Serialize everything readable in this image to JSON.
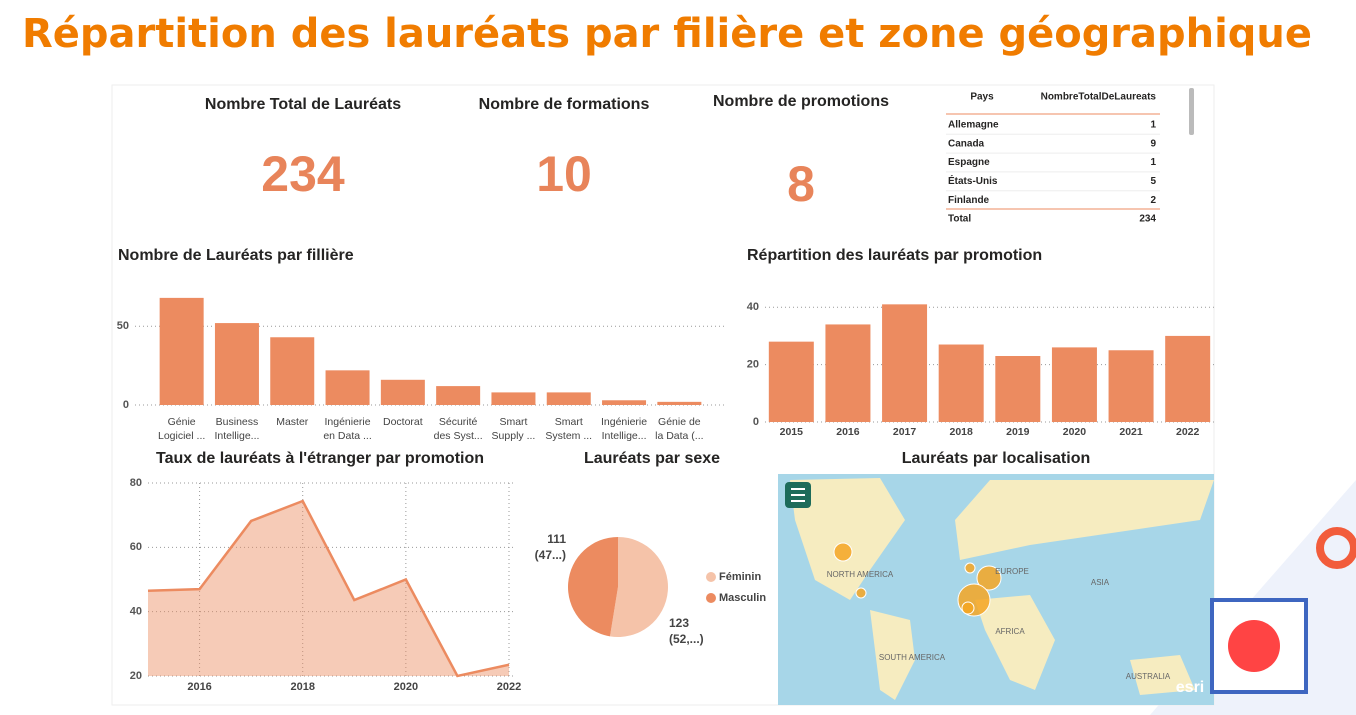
{
  "title": "Répartition des lauréats par filière et zone géographique",
  "kpis": [
    {
      "label": "Nombre Total de Lauréats",
      "value": 234
    },
    {
      "label": "Nombre de formations",
      "value": 10
    },
    {
      "label": "Nombre de promotions",
      "value": 8
    }
  ],
  "table": {
    "headers": [
      "Pays",
      "NombreTotalDeLaureats"
    ],
    "rows": [
      [
        "Allemagne",
        1
      ],
      [
        "Canada",
        9
      ],
      [
        "Espagne",
        1
      ],
      [
        "États-Unis",
        5
      ],
      [
        "Finlande",
        2
      ]
    ],
    "total": [
      "Total",
      234
    ]
  },
  "chart_data": [
    {
      "type": "bar",
      "title": "Nombre de Lauréats par fillière",
      "categories": [
        [
          "Génie",
          "Logiciel ..."
        ],
        [
          "Business",
          "Intellige..."
        ],
        [
          "Master"
        ],
        [
          "Ingénierie",
          "en Data ..."
        ],
        [
          "Doctorat"
        ],
        [
          "Sécurité",
          "des Syst..."
        ],
        [
          "Smart",
          "Supply ..."
        ],
        [
          "Smart",
          "System ..."
        ],
        [
          "Ingénierie",
          "Intellige..."
        ],
        [
          "Génie de",
          "la Data (..."
        ]
      ],
      "values": [
        68,
        52,
        43,
        22,
        16,
        12,
        8,
        8,
        3,
        2
      ],
      "color": "#ec8b60",
      "ylim": [
        0,
        73
      ],
      "yticks": [
        0,
        50
      ],
      "grid": true
    },
    {
      "type": "bar",
      "title": "Répartition des lauréats par promotion",
      "categories": [
        [
          "2015"
        ],
        [
          "2016"
        ],
        [
          "2017"
        ],
        [
          "2018"
        ],
        [
          "2019"
        ],
        [
          "2020"
        ],
        [
          "2021"
        ],
        [
          "2022"
        ]
      ],
      "values": [
        28,
        34,
        41,
        27,
        23,
        26,
        25,
        30
      ],
      "color": "#ec8b60",
      "ylim": [
        0,
        46
      ],
      "yticks": [
        0,
        20,
        40
      ],
      "grid": true
    },
    {
      "type": "area",
      "title": "Taux de lauréats à l'étranger par promotion",
      "x": [
        2015,
        2016,
        2017,
        2018,
        2019,
        2020,
        2021,
        2022
      ],
      "values": [
        46.5,
        47,
        68.2,
        74.4,
        43.6,
        50,
        20,
        23.5
      ],
      "color": "#ec8b60",
      "xlim": [
        2015,
        2022
      ],
      "xticks": [
        2016,
        2018,
        2020,
        2022
      ],
      "ylim": [
        20,
        80
      ],
      "yticks": [
        20,
        40,
        60,
        80
      ],
      "grid": true
    },
    {
      "type": "pie",
      "title": "Lauréats par sexe",
      "categories": [
        "Féminin",
        "Masculin"
      ],
      "values": [
        123,
        111
      ],
      "value_labels": [
        [
          "123",
          "(52,...)"
        ],
        [
          "111",
          "(47...)"
        ]
      ],
      "colors": [
        "#f5c3a9",
        "#ec8b60"
      ]
    }
  ],
  "map": {
    "title": "Lauréats par localisation",
    "labels": [
      "NORTH AMERICA",
      "EUROPE",
      "ASIA",
      "AFRICA",
      "SOUTH AMERICA",
      "AUSTRALIA"
    ],
    "logo": "esri"
  }
}
